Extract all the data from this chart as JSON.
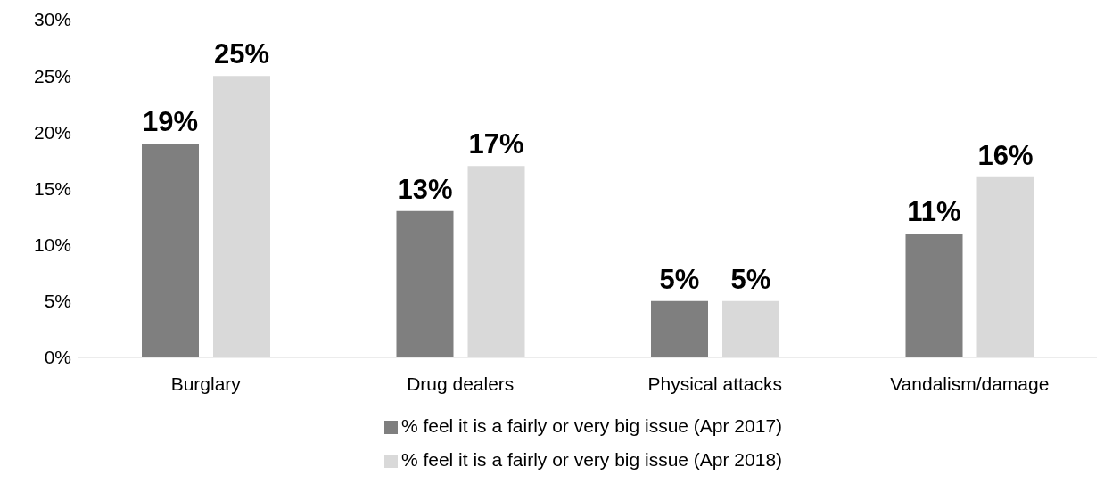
{
  "chart_data": {
    "type": "bar",
    "categories": [
      "Burglary",
      "Drug dealers",
      "Physical attacks",
      "Vandalism/damage"
    ],
    "series": [
      {
        "name": "% feel it is a fairly or very big issue (Apr 2017)",
        "color": "#7f7f7f",
        "values": [
          19,
          13,
          5,
          11
        ],
        "value_labels": [
          "19%",
          "13%",
          "5%",
          "11%"
        ]
      },
      {
        "name": "% feel it is a fairly or very big issue (Apr 2018)",
        "color": "#d9d9d9",
        "values": [
          25,
          17,
          5,
          16
        ],
        "value_labels": [
          "25%",
          "17%",
          "5%",
          "16%"
        ]
      }
    ],
    "ylim": [
      0,
      30
    ],
    "yticks": [
      {
        "value": 0,
        "label": "0%"
      },
      {
        "value": 5,
        "label": "5%"
      },
      {
        "value": 10,
        "label": "10%"
      },
      {
        "value": 15,
        "label": "15%"
      },
      {
        "value": 20,
        "label": "20%"
      },
      {
        "value": 25,
        "label": "25%"
      },
      {
        "value": 30,
        "label": "30%"
      }
    ],
    "grid": false,
    "legend": "bottom"
  }
}
